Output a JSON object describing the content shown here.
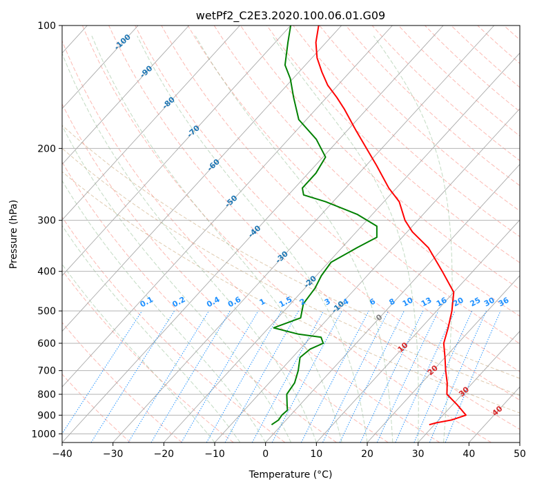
{
  "chart_data": {
    "type": "line",
    "chart_kind": "skew-T log-P diagram",
    "title": "wetPf2_C2E3.2020.100.06.01.G09",
    "xlabel": "Temperature (°C)",
    "ylabel": "Pressure (hPa)",
    "xlim": [
      -40,
      50
    ],
    "ylim": [
      1050,
      100
    ],
    "y_scale": "log",
    "x_ticks": [
      -40,
      -30,
      -20,
      -10,
      0,
      10,
      20,
      30,
      40,
      50
    ],
    "y_ticks": [
      1000,
      900,
      800,
      700,
      600,
      500,
      400,
      300,
      200,
      100
    ],
    "grid": true,
    "colors": {
      "temperature": "#ff0000",
      "dewpoint": "#008000",
      "isotherm": "#a9a9a9",
      "dry_adiabat": "#fa8072",
      "moist_adiabat": "#8fbc8f",
      "mixing_ratio": "#1e90ff",
      "theta_e": "#d2b48c",
      "label_blue": "#1f77b4",
      "label_red": "#d62728"
    },
    "series": [
      {
        "role": "temperature",
        "color": "#ff0000",
        "points": [
          {
            "p": 950,
            "t": 29.0
          },
          {
            "p": 940,
            "t": 30.0
          },
          {
            "p": 925,
            "t": 32.5
          },
          {
            "p": 900,
            "t": 34.5
          },
          {
            "p": 850,
            "t": 31.0
          },
          {
            "p": 800,
            "t": 27.0
          },
          {
            "p": 750,
            "t": 25.0
          },
          {
            "p": 700,
            "t": 22.5
          },
          {
            "p": 650,
            "t": 20.0
          },
          {
            "p": 600,
            "t": 17.2
          },
          {
            "p": 550,
            "t": 15.3
          },
          {
            "p": 500,
            "t": 13.0
          },
          {
            "p": 450,
            "t": 10.0
          },
          {
            "p": 400,
            "t": 4.0
          },
          {
            "p": 350,
            "t": -3.0
          },
          {
            "p": 320,
            "t": -9.0
          },
          {
            "p": 300,
            "t": -12.5
          },
          {
            "p": 270,
            "t": -17.0
          },
          {
            "p": 250,
            "t": -21.5
          },
          {
            "p": 220,
            "t": -28.0
          },
          {
            "p": 200,
            "t": -33.0
          },
          {
            "p": 180,
            "t": -38.5
          },
          {
            "p": 160,
            "t": -44.5
          },
          {
            "p": 150,
            "t": -48.0
          },
          {
            "p": 140,
            "t": -52.0
          },
          {
            "p": 130,
            "t": -55.5
          },
          {
            "p": 120,
            "t": -59.0
          },
          {
            "p": 110,
            "t": -62.0
          },
          {
            "p": 100,
            "t": -64.5
          }
        ]
      },
      {
        "role": "dewpoint",
        "color": "#008000",
        "points": [
          {
            "p": 950,
            "t": -2.0
          },
          {
            "p": 925,
            "t": -1.5
          },
          {
            "p": 900,
            "t": -1.7
          },
          {
            "p": 875,
            "t": -1.5
          },
          {
            "p": 850,
            "t": -2.5
          },
          {
            "p": 800,
            "t": -4.5
          },
          {
            "p": 750,
            "t": -5.0
          },
          {
            "p": 700,
            "t": -6.5
          },
          {
            "p": 650,
            "t": -8.5
          },
          {
            "p": 620,
            "t": -8.0
          },
          {
            "p": 600,
            "t": -6.5
          },
          {
            "p": 580,
            "t": -8.0
          },
          {
            "p": 570,
            "t": -13.0
          },
          {
            "p": 550,
            "t": -19.0
          },
          {
            "p": 520,
            "t": -15.5
          },
          {
            "p": 480,
            "t": -17.5
          },
          {
            "p": 440,
            "t": -18.0
          },
          {
            "p": 410,
            "t": -19.0
          },
          {
            "p": 380,
            "t": -19.5
          },
          {
            "p": 350,
            "t": -17.0
          },
          {
            "p": 330,
            "t": -15.0
          },
          {
            "p": 310,
            "t": -17.0
          },
          {
            "p": 290,
            "t": -23.0
          },
          {
            "p": 270,
            "t": -31.5
          },
          {
            "p": 260,
            "t": -37.0
          },
          {
            "p": 250,
            "t": -38.5
          },
          {
            "p": 230,
            "t": -38.5
          },
          {
            "p": 210,
            "t": -39.5
          },
          {
            "p": 190,
            "t": -44.5
          },
          {
            "p": 170,
            "t": -51.5
          },
          {
            "p": 150,
            "t": -56.5
          },
          {
            "p": 135,
            "t": -60.5
          },
          {
            "p": 125,
            "t": -64.0
          },
          {
            "p": 110,
            "t": -67.5
          },
          {
            "p": 100,
            "t": -70.0
          }
        ]
      }
    ],
    "isotherm_labels": [
      "-100",
      "-90",
      "-80",
      "-70",
      "-60",
      "-50",
      "-40",
      "-30",
      "-20",
      "-10"
    ],
    "isotherm_label_values": [
      -100,
      -90,
      -80,
      -70,
      -60,
      -50,
      -40,
      -30,
      -20,
      -10
    ],
    "warm_isotherm_labels": [
      "0",
      "10",
      "20",
      "30",
      "40"
    ],
    "warm_isotherm_values": [
      0,
      10,
      20,
      30,
      40
    ],
    "mixing_ratio_labels": [
      "0.1",
      "0.2",
      "0.4",
      "0.6",
      "1",
      "1.5",
      "2",
      "3",
      "4",
      "6",
      "8",
      "10",
      "13",
      "16",
      "20",
      "25",
      "30",
      "36"
    ],
    "mixing_ratio_values": [
      0.1,
      0.2,
      0.4,
      0.6,
      1,
      1.5,
      2,
      3,
      4,
      6,
      8,
      10,
      13,
      16,
      20,
      25,
      30,
      36
    ]
  }
}
